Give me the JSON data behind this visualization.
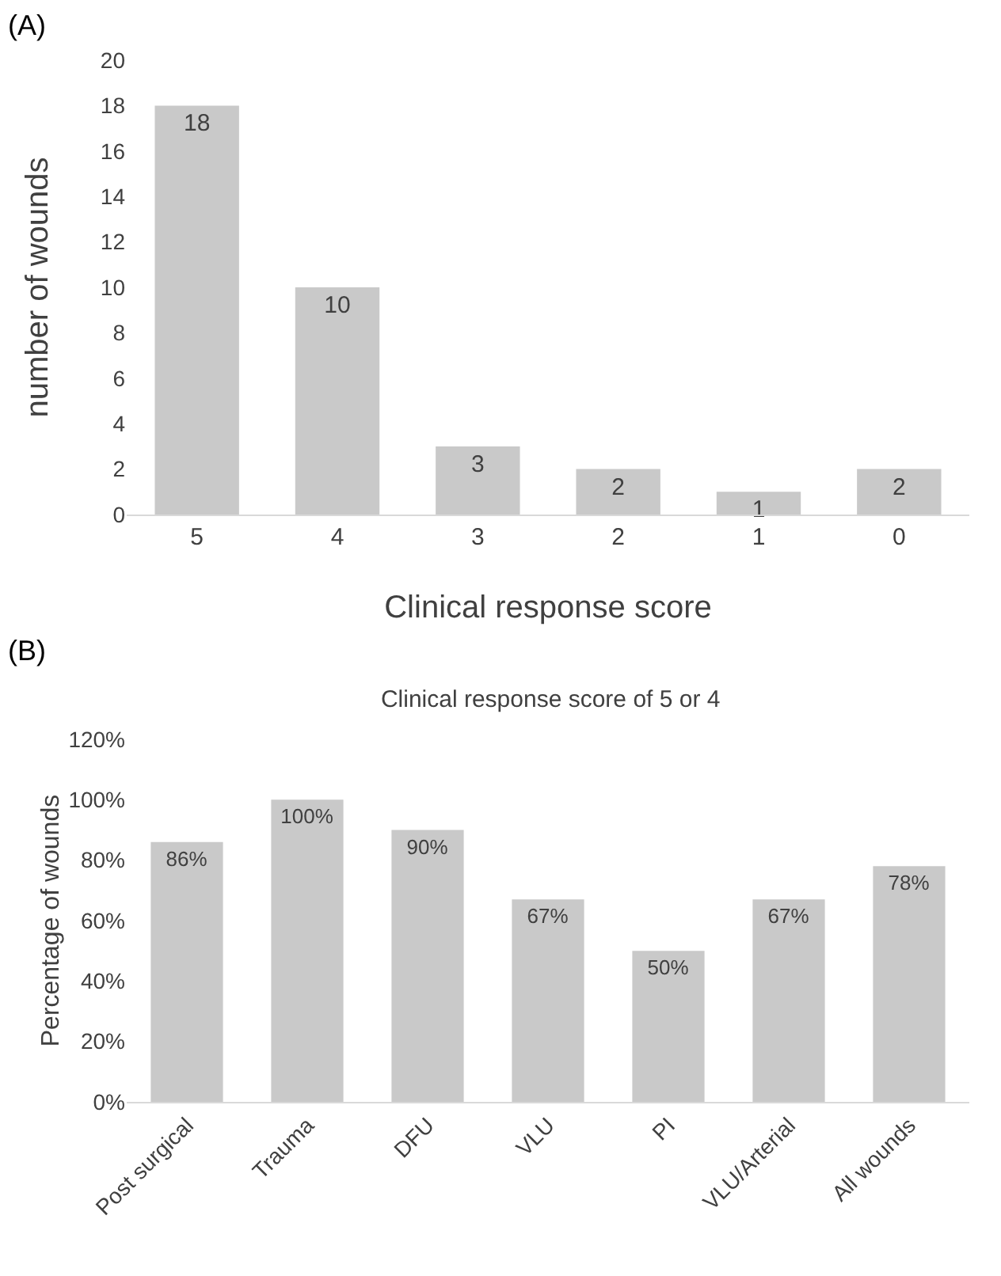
{
  "chart_data": [
    {
      "type": "bar",
      "annotations": [
        "(A)"
      ],
      "xlabel": "Clinical response score",
      "ylabel": "number of wounds",
      "categories": [
        "5",
        "4",
        "3",
        "2",
        "1",
        "0"
      ],
      "values": [
        18,
        10,
        3,
        2,
        1,
        2
      ],
      "color": "#c9c9c9",
      "ylim": [
        0,
        20
      ],
      "yticks": [
        0,
        2,
        4,
        6,
        8,
        10,
        12,
        14,
        16,
        18,
        20
      ],
      "data_labels": true,
      "grid": false
    },
    {
      "type": "bar",
      "title": "Clinical response score of 5 or 4",
      "annotations": [
        "(B)"
      ],
      "ylabel": "Percentage of wounds",
      "categories": [
        "Post surgical",
        "Trauma",
        "DFU",
        "VLU",
        "PI",
        "VLU/Arterial",
        "All wounds"
      ],
      "values": [
        86,
        100,
        90,
        67,
        50,
        67,
        78
      ],
      "color": "#c9c9c9",
      "value_labels": [
        "86%",
        "100%",
        "90%",
        "67%",
        "50%",
        "67%",
        "78%"
      ],
      "ylim": [
        0,
        120
      ],
      "yticks": [
        {
          "value": 0,
          "label": "0%"
        },
        {
          "value": 20,
          "label": "20%"
        },
        {
          "value": 40,
          "label": "40%"
        },
        {
          "value": 60,
          "label": "60%"
        },
        {
          "value": 80,
          "label": "80%"
        },
        {
          "value": 100,
          "label": "100%"
        },
        {
          "value": 120,
          "label": "120%"
        }
      ],
      "grid": false
    }
  ]
}
